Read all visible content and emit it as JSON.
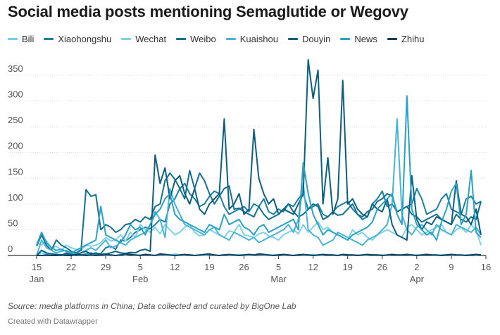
{
  "title": "Social media posts mentioning Semaglutide or Wegovy",
  "source": "Source: media platforms in China; Data collected and curated by BigOne Lab",
  "credit": "Created with Datawrapper",
  "chart_data": {
    "type": "line",
    "x_start": "2023-01-15",
    "ylim": [
      0,
      380
    ],
    "y_ticks": [
      0,
      50,
      100,
      150,
      200,
      250,
      300,
      350
    ],
    "x_ticks": [
      {
        "day": 0,
        "label": "15",
        "month": "Jan"
      },
      {
        "day": 7,
        "label": "22",
        "month": ""
      },
      {
        "day": 14,
        "label": "29",
        "month": ""
      },
      {
        "day": 21,
        "label": "5",
        "month": "Feb"
      },
      {
        "day": 28,
        "label": "12",
        "month": ""
      },
      {
        "day": 35,
        "label": "19",
        "month": ""
      },
      {
        "day": 42,
        "label": "26",
        "month": ""
      },
      {
        "day": 49,
        "label": "5",
        "month": "Mar"
      },
      {
        "day": 56,
        "label": "12",
        "month": ""
      },
      {
        "day": 63,
        "label": "19",
        "month": ""
      },
      {
        "day": 70,
        "label": "26",
        "month": ""
      },
      {
        "day": 77,
        "label": "2",
        "month": "Apr"
      },
      {
        "day": 84,
        "label": "9",
        "month": ""
      },
      {
        "day": 91,
        "label": "16",
        "month": ""
      }
    ],
    "series": [
      {
        "name": "Bili",
        "color": "#6fd0ee",
        "values": [
          0,
          5,
          3,
          2,
          1,
          0,
          1,
          2,
          0,
          1,
          3,
          1,
          0,
          2,
          1,
          1,
          0,
          2,
          1,
          3,
          0,
          1,
          2,
          1,
          0,
          2,
          1,
          0,
          3,
          1,
          1,
          2,
          0,
          1,
          0,
          2,
          1,
          0,
          2,
          1,
          1,
          2,
          1,
          0,
          1,
          2,
          1,
          0,
          1,
          2,
          1,
          1,
          0,
          2,
          1,
          1,
          2,
          0,
          1,
          2,
          1,
          0,
          1,
          2,
          1,
          1,
          0,
          1,
          2,
          1,
          1,
          0,
          2,
          1,
          1,
          2,
          0,
          1,
          1,
          2,
          1,
          0,
          1,
          2,
          1,
          1,
          0,
          1,
          2,
          1,
          2
        ]
      },
      {
        "name": "Xiaohongshu",
        "color": "#1b7fa3",
        "values": [
          0,
          0,
          0,
          0,
          1,
          0,
          5,
          2,
          0,
          1,
          3,
          5,
          2,
          4,
          15,
          18,
          12,
          30,
          28,
          35,
          45,
          50,
          55,
          52,
          60,
          70,
          65,
          100,
          110,
          130,
          140,
          120,
          110,
          95,
          100,
          115,
          125,
          120,
          95,
          80,
          85,
          90,
          95,
          85,
          100,
          95,
          110,
          85,
          80,
          90,
          85,
          100,
          95,
          110,
          120,
          90,
          95,
          100,
          80,
          75,
          85,
          95,
          100,
          105,
          90,
          80,
          70,
          75,
          100,
          110,
          125,
          95,
          100,
          85,
          90,
          95,
          100,
          130,
          110,
          80,
          85,
          90,
          110,
          120,
          90,
          85,
          80,
          110,
          115,
          100,
          105
        ]
      },
      {
        "name": "Wechat",
        "color": "#7dd2e8",
        "values": [
          25,
          20,
          28,
          15,
          18,
          10,
          20,
          15,
          12,
          10,
          20,
          18,
          20,
          25,
          35,
          28,
          30,
          40,
          28,
          45,
          35,
          60,
          50,
          45,
          55,
          42,
          60,
          50,
          40,
          45,
          55,
          60,
          45,
          38,
          40,
          50,
          45,
          40,
          35,
          48,
          45,
          60,
          40,
          38,
          35,
          42,
          45,
          38,
          35,
          30,
          40,
          45,
          50,
          42,
          60,
          45,
          55,
          65,
          50,
          55,
          45,
          40,
          35,
          30,
          50,
          40,
          45,
          35,
          30,
          40,
          45,
          50,
          45,
          40,
          35,
          55,
          60,
          50,
          40,
          45,
          50,
          55,
          60,
          45,
          40,
          50,
          55,
          45,
          60,
          50,
          20
        ]
      },
      {
        "name": "Weibo",
        "color": "#14708f",
        "values": [
          18,
          40,
          20,
          10,
          30,
          20,
          15,
          8,
          5,
          10,
          128,
          115,
          118,
          50,
          60,
          55,
          45,
          50,
          60,
          62,
          70,
          65,
          75,
          70,
          95,
          100,
          145,
          160,
          148,
          130,
          110,
          165,
          130,
          160,
          145,
          120,
          100,
          115,
          130,
          135,
          90,
          92,
          85,
          80,
          75,
          95,
          80,
          70,
          75,
          80,
          90,
          100,
          85,
          75,
          80,
          90,
          100,
          95,
          70,
          75,
          85,
          78,
          80,
          90,
          100,
          80,
          75,
          85,
          90,
          105,
          110,
          120,
          115,
          85,
          90,
          95,
          80,
          75,
          65,
          70,
          75,
          80,
          70,
          65,
          60,
          80,
          70,
          65,
          75,
          70,
          105
        ]
      },
      {
        "name": "Kuaishou",
        "color": "#4ab3d6",
        "values": [
          0,
          30,
          15,
          10,
          5,
          8,
          10,
          5,
          3,
          5,
          10,
          15,
          10,
          20,
          30,
          15,
          18,
          25,
          20,
          30,
          35,
          40,
          45,
          60,
          85,
          70,
          35,
          130,
          100,
          80,
          60,
          55,
          50,
          45,
          40,
          50,
          55,
          40,
          35,
          30,
          45,
          40,
          35,
          30,
          35,
          25,
          30,
          35,
          40,
          45,
          50,
          60,
          45,
          70,
          140,
          50,
          40,
          35,
          20,
          25,
          30,
          45,
          40,
          35,
          30,
          25,
          20,
          30,
          35,
          40,
          50,
          60,
          100,
          265,
          80,
          50,
          40,
          55,
          60,
          50,
          40,
          60,
          50,
          45,
          40,
          60,
          55,
          50,
          45,
          55,
          40
        ]
      },
      {
        "name": "Douyin",
        "color": "#0d5f7f",
        "values": [
          0,
          10,
          5,
          3,
          2,
          1,
          3,
          2,
          1,
          5,
          8,
          3,
          5,
          2,
          3,
          5,
          8,
          5,
          4,
          6,
          5,
          10,
          12,
          8,
          195,
          140,
          170,
          110,
          145,
          155,
          120,
          100,
          130,
          90,
          80,
          100,
          110,
          120,
          265,
          90,
          100,
          120,
          80,
          90,
          245,
          150,
          120,
          100,
          110,
          80,
          90,
          85,
          80,
          100,
          120,
          380,
          305,
          360,
          100,
          190,
          80,
          110,
          340,
          100,
          110,
          90,
          80,
          75,
          100,
          90,
          85,
          110,
          60,
          40,
          35,
          30,
          155,
          70,
          50,
          65,
          60,
          75,
          70,
          65,
          60,
          145,
          80,
          75,
          60,
          90,
          40
        ]
      },
      {
        "name": "News",
        "color": "#2aa2c3",
        "values": [
          20,
          45,
          25,
          15,
          10,
          12,
          8,
          5,
          10,
          15,
          20,
          25,
          30,
          95,
          40,
          35,
          30,
          25,
          40,
          60,
          50,
          55,
          40,
          60,
          80,
          90,
          110,
          120,
          80,
          70,
          65,
          60,
          55,
          50,
          45,
          60,
          55,
          50,
          80,
          60,
          65,
          70,
          55,
          50,
          40,
          55,
          60,
          45,
          50,
          55,
          60,
          65,
          70,
          50,
          180,
          120,
          80,
          60,
          40,
          50,
          45,
          40,
          35,
          30,
          40,
          45,
          50,
          55,
          65,
          90,
          100,
          110,
          120,
          80,
          60,
          310,
          90,
          60,
          50,
          40,
          45,
          30,
          65,
          90,
          125,
          140,
          60,
          80,
          165,
          45,
          35
        ]
      },
      {
        "name": "Zhihu",
        "color": "#0b3f5e",
        "values": [
          0,
          0,
          1,
          0,
          0,
          1,
          0,
          0,
          2,
          1,
          0,
          1,
          0,
          1,
          2,
          1,
          0,
          1,
          3,
          2,
          1,
          0,
          2,
          1,
          0,
          3,
          2,
          1,
          0,
          1,
          2,
          1,
          0,
          1,
          2,
          3,
          1,
          0,
          1,
          2,
          1,
          0,
          1,
          2,
          1,
          3,
          2,
          1,
          0,
          1,
          2,
          1,
          0,
          1,
          2,
          1,
          0,
          1,
          2,
          1,
          1,
          0,
          2,
          1,
          1,
          0,
          1,
          2,
          1,
          1,
          0,
          1,
          2,
          1,
          1,
          2,
          1,
          0,
          1,
          2,
          1,
          1,
          0,
          1,
          2,
          1,
          1,
          0,
          1,
          2,
          1
        ]
      }
    ]
  }
}
